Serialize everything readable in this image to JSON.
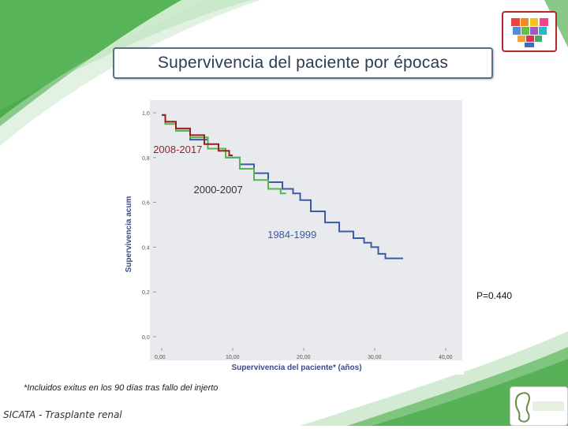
{
  "slide": {
    "title": "Supervivencia del paciente por épocas",
    "note": "*Incluidos exitus en los 90 días tras fallo del injerto",
    "footer": "SICATA - Trasplante renal",
    "p_value": "P=0.440",
    "colors": {
      "title_border": "#5a6e86",
      "swoosh_green": "#3aa33a",
      "series_2008_2017": "#9a1f1f",
      "series_2000_2007": "#55b54a",
      "series_1984_1999": "#3b5aa8"
    },
    "logos": [
      "heart-mosaic-logo",
      "nefrologia-logo"
    ]
  },
  "chart_data": {
    "type": "line",
    "xlabel": "Supervivencia del paciente* (años)",
    "ylabel": "Supervivencia acum",
    "xlim": [
      0,
      40
    ],
    "ylim": [
      0,
      1
    ],
    "x_ticks": [
      "0,00",
      "10,00",
      "20,00",
      "30,00",
      "40,00"
    ],
    "y_ticks": [
      "0,0",
      "0,2",
      "0,4",
      "0,6",
      "0,8",
      "1,0"
    ],
    "grid": false,
    "step": true,
    "series": [
      {
        "name": "1984-1999",
        "x": [
          0,
          1,
          3,
          5,
          8,
          10,
          12,
          14,
          16,
          18,
          19,
          20,
          22,
          24,
          26,
          28,
          29,
          30,
          31,
          32,
          34
        ],
        "y": [
          0.99,
          0.96,
          0.92,
          0.88,
          0.84,
          0.8,
          0.77,
          0.73,
          0.69,
          0.66,
          0.64,
          0.61,
          0.56,
          0.51,
          0.47,
          0.44,
          0.42,
          0.4,
          0.37,
          0.35,
          0.35
        ]
      },
      {
        "name": "2000-2007",
        "x": [
          0,
          1,
          3,
          5,
          8,
          10,
          12,
          14,
          16,
          17.5
        ],
        "y": [
          0.99,
          0.95,
          0.92,
          0.89,
          0.84,
          0.8,
          0.75,
          0.7,
          0.66,
          0.64
        ]
      },
      {
        "name": "2008-2017",
        "x": [
          0,
          1,
          3,
          5,
          7,
          9,
          10
        ],
        "y": [
          0.99,
          0.96,
          0.93,
          0.9,
          0.86,
          0.83,
          0.81
        ]
      }
    ]
  }
}
